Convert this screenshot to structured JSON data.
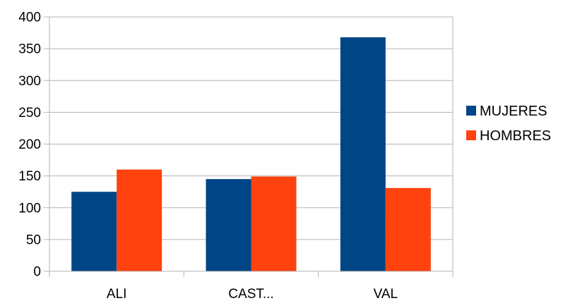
{
  "chart_data": {
    "type": "bar",
    "categories": [
      "ALI",
      "CAST...",
      "VAL"
    ],
    "series": [
      {
        "name": "MUJERES",
        "color": "#004586",
        "values": [
          125,
          145,
          368
        ]
      },
      {
        "name": "HOMBRES",
        "color": "#ff420e",
        "values": [
          160,
          149,
          131
        ]
      }
    ],
    "ylim": [
      0,
      400
    ],
    "yticks": [
      0,
      50,
      100,
      150,
      200,
      250,
      300,
      350,
      400
    ],
    "grid": true,
    "legend_position": "right"
  }
}
